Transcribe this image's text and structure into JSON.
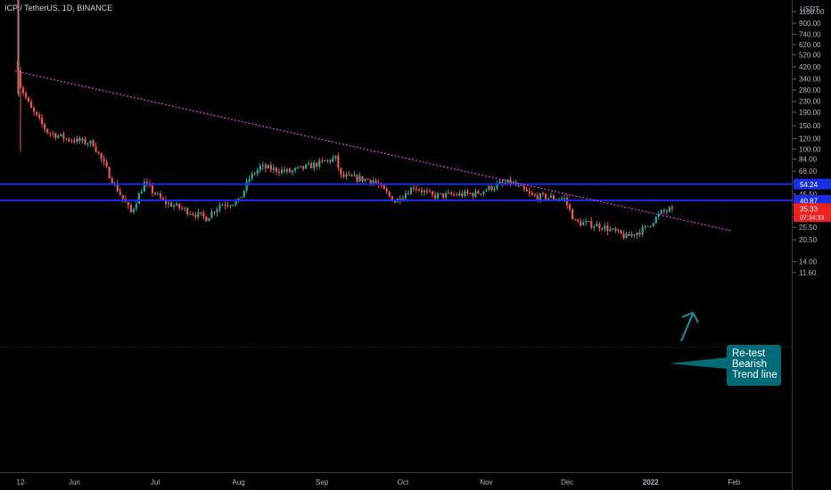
{
  "symbol": "ICP / TetherUS, 1D, BINANCE",
  "currency": "USDT",
  "price_axis_ticks": [
    "1100.00",
    "900.00",
    "740.00",
    "620.00",
    "520.00",
    "420.00",
    "340.00",
    "280.00",
    "230.00",
    "190.00",
    "150.00",
    "120.00",
    "100.00",
    "84.00",
    "68.00",
    "55.50",
    "45.50",
    "37.50",
    "30.50",
    "25.50",
    "20.50",
    "14.00",
    "11.60"
  ],
  "time_axis_ticks": [
    "12",
    "Jun",
    "Jul",
    "Aug",
    "Sep",
    "Oct",
    "Nov",
    "Dec",
    "2022",
    "Feb"
  ],
  "price_badges": {
    "resistance_upper": "54.24",
    "resistance_lower": "40.87",
    "last_price": "35.33",
    "countdown": "07:34:33"
  },
  "annotation": {
    "line1": "Re-test",
    "line2": "Bearish",
    "line3": "Trend line"
  },
  "colors": {
    "up": "#26a69a",
    "down": "#ef5350",
    "horizontal_level": "#1a2ee8",
    "trendline": "#d63ad9",
    "arrow": "#1b8fa0",
    "callout": "#006b76",
    "last_price_badge": "#ef2020"
  },
  "chart_data": {
    "type": "candlestick",
    "symbol": "ICP / TetherUS, 1D, BINANCE",
    "y_scale": "log",
    "ylim": [
      11.6,
      1100
    ],
    "x_range": [
      "2021-05-10",
      "2022-02-10"
    ],
    "horizontal_levels": [
      54.24,
      40.87
    ],
    "last_price": 35.33,
    "trendline": {
      "start": [
        "2021-05-10",
        390
      ],
      "end": [
        "2022-01-31",
        24
      ]
    },
    "close_path": [
      {
        "date": "2021-05-11",
        "close": 420
      },
      {
        "date": "2021-05-12",
        "close": 300
      },
      {
        "date": "2021-05-16",
        "close": 200
      },
      {
        "date": "2021-05-22",
        "close": 135
      },
      {
        "date": "2021-05-29",
        "close": 120
      },
      {
        "date": "2021-06-08",
        "close": 110
      },
      {
        "date": "2021-06-15",
        "close": 58
      },
      {
        "date": "2021-06-22",
        "close": 33
      },
      {
        "date": "2021-06-27",
        "close": 55
      },
      {
        "date": "2021-07-04",
        "close": 40
      },
      {
        "date": "2021-07-20",
        "close": 30
      },
      {
        "date": "2021-07-25",
        "close": 38
      },
      {
        "date": "2021-08-01",
        "close": 40
      },
      {
        "date": "2021-08-05",
        "close": 60
      },
      {
        "date": "2021-08-09",
        "close": 73
      },
      {
        "date": "2021-08-20",
        "close": 67
      },
      {
        "date": "2021-08-30",
        "close": 77
      },
      {
        "date": "2021-09-06",
        "close": 85
      },
      {
        "date": "2021-09-08",
        "close": 62
      },
      {
        "date": "2021-09-20",
        "close": 58
      },
      {
        "date": "2021-09-28",
        "close": 40
      },
      {
        "date": "2021-10-05",
        "close": 52
      },
      {
        "date": "2021-10-12",
        "close": 44
      },
      {
        "date": "2021-10-28",
        "close": 46
      },
      {
        "date": "2021-11-06",
        "close": 54
      },
      {
        "date": "2021-11-10",
        "close": 56
      },
      {
        "date": "2021-11-18",
        "close": 44
      },
      {
        "date": "2021-11-30",
        "close": 42
      },
      {
        "date": "2021-12-04",
        "close": 28
      },
      {
        "date": "2021-12-14",
        "close": 26
      },
      {
        "date": "2021-12-23",
        "close": 21.5
      },
      {
        "date": "2021-12-30",
        "close": 25
      },
      {
        "date": "2022-01-05",
        "close": 33
      },
      {
        "date": "2022-01-09",
        "close": 35.33
      }
    ]
  }
}
